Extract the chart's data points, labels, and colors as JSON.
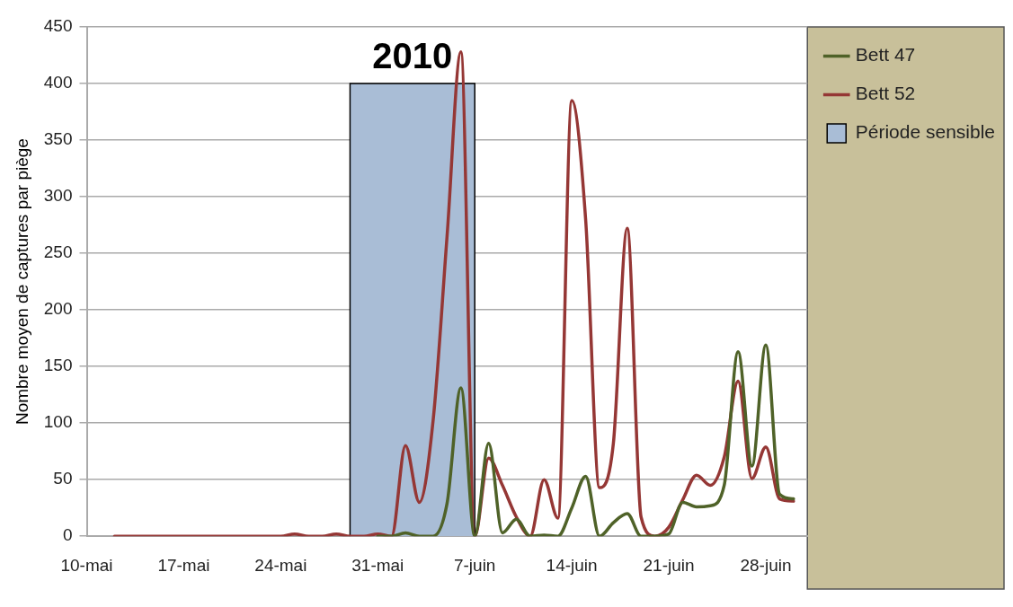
{
  "chart_data": {
    "type": "line",
    "ylabel": "Nombre moyen de captures par piège",
    "xlim": [
      "2010-05-10",
      "2010-07-01"
    ],
    "xticks": [
      {
        "value": "2010-05-10",
        "label": "10-mai"
      },
      {
        "value": "2010-05-17",
        "label": "17-mai"
      },
      {
        "value": "2010-05-24",
        "label": "24-mai"
      },
      {
        "value": "2010-05-31",
        "label": "31-mai"
      },
      {
        "value": "2010-06-07",
        "label": "7-juin"
      },
      {
        "value": "2010-06-14",
        "label": "14-juin"
      },
      {
        "value": "2010-06-21",
        "label": "21-juin"
      },
      {
        "value": "2010-06-28",
        "label": "28-juin"
      }
    ],
    "ylim": [
      0,
      450
    ],
    "yticks": [
      0,
      50,
      100,
      150,
      200,
      250,
      300,
      350,
      400,
      450
    ],
    "grid": "y",
    "legend": "top right",
    "marker": "none",
    "annotations": [
      {
        "text": "2010",
        "x": "2010-06-02T12:00",
        "y": 400
      }
    ],
    "series": [
      {
        "name": "Période sensible",
        "type": "area",
        "color": "#a9bdd6",
        "x": [
          "2010-05-29",
          "2010-05-29",
          "2010-06-07",
          "2010-06-07"
        ],
        "values": [
          0,
          400,
          400,
          0
        ]
      },
      {
        "name": "Bett 47",
        "color": "#4f6228",
        "x": [
          "2010-05-31",
          "2010-06-01",
          "2010-06-02",
          "2010-06-03",
          "2010-06-04",
          "2010-06-05",
          "2010-06-06",
          "2010-06-07",
          "2010-06-08",
          "2010-06-09",
          "2010-06-10",
          "2010-06-11",
          "2010-06-12",
          "2010-06-13",
          "2010-06-14",
          "2010-06-15",
          "2010-06-16",
          "2010-06-17",
          "2010-06-18",
          "2010-06-19",
          "2010-06-20",
          "2010-06-21",
          "2010-06-22",
          "2010-06-23",
          "2010-06-24",
          "2010-06-25",
          "2010-06-26",
          "2010-06-27",
          "2010-06-28",
          "2010-06-29",
          "2010-06-30"
        ],
        "values": [
          0,
          0,
          3,
          0,
          0,
          29,
          131,
          0,
          82,
          3,
          15,
          0,
          1,
          0,
          25,
          53,
          0,
          12,
          20,
          0,
          0,
          2,
          30,
          26,
          27,
          45,
          163,
          62,
          169,
          37,
          33
        ]
      },
      {
        "name": "Bett 52",
        "color": "#953735",
        "x": [
          "2010-05-12",
          "2010-05-13",
          "2010-05-14",
          "2010-05-15",
          "2010-05-16",
          "2010-05-17",
          "2010-05-18",
          "2010-05-19",
          "2010-05-20",
          "2010-05-21",
          "2010-05-22",
          "2010-05-23",
          "2010-05-24",
          "2010-05-25",
          "2010-05-26",
          "2010-05-27",
          "2010-05-28",
          "2010-05-29",
          "2010-05-30",
          "2010-05-31",
          "2010-06-01",
          "2010-06-02",
          "2010-06-03",
          "2010-06-04",
          "2010-06-05",
          "2010-06-06",
          "2010-06-07",
          "2010-06-08",
          "2010-06-09",
          "2010-06-10",
          "2010-06-11",
          "2010-06-12",
          "2010-06-13",
          "2010-06-14",
          "2010-06-15",
          "2010-06-16",
          "2010-06-17",
          "2010-06-18",
          "2010-06-19",
          "2010-06-20",
          "2010-06-21",
          "2010-06-22",
          "2010-06-23",
          "2010-06-24",
          "2010-06-25",
          "2010-06-26",
          "2010-06-27",
          "2010-06-28",
          "2010-06-29",
          "2010-06-30"
        ],
        "values": [
          0,
          0,
          0,
          0,
          0,
          0,
          0,
          0,
          0,
          0,
          0,
          0,
          0,
          2,
          0,
          0,
          2,
          0,
          0,
          2,
          0,
          80,
          30,
          103,
          265,
          428,
          0,
          69,
          45,
          17,
          0,
          50,
          16,
          385,
          280,
          43,
          82,
          272,
          17,
          0,
          8,
          32,
          54,
          45,
          70,
          137,
          51,
          79,
          33,
          31
        ]
      }
    ]
  }
}
